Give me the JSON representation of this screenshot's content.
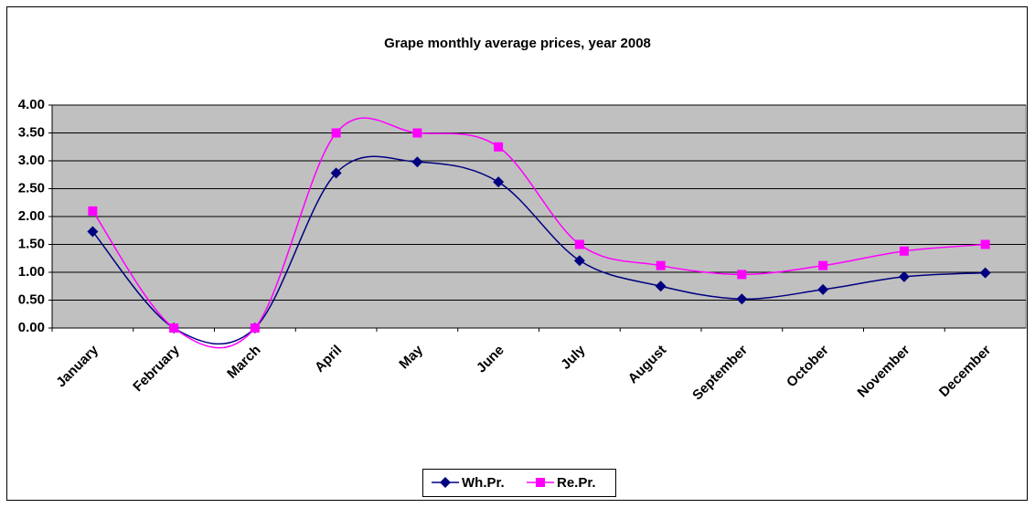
{
  "chart_data": {
    "type": "line",
    "title": "Grape monthly average prices, year 2008",
    "categories": [
      "January",
      "February",
      "March",
      "April",
      "May",
      "June",
      "July",
      "August",
      "September",
      "October",
      "November",
      "December"
    ],
    "series": [
      {
        "name": "Wh.Pr.",
        "color": "#000080",
        "marker": "diamond",
        "values": [
          1.73,
          0,
          0,
          2.78,
          2.98,
          2.62,
          1.21,
          0.75,
          0.52,
          0.69,
          0.92,
          0.99
        ]
      },
      {
        "name": "Re.Pr.",
        "color": "#ff00ff",
        "marker": "square",
        "values": [
          2.1,
          0,
          0,
          3.5,
          3.5,
          3.25,
          1.5,
          1.12,
          0.96,
          1.12,
          1.38,
          1.5
        ]
      }
    ],
    "ylim": [
      0,
      4
    ],
    "yticks": [
      {
        "value": 0,
        "label": "0.00"
      },
      {
        "value": 0.5,
        "label": "0.50"
      },
      {
        "value": 1,
        "label": "1.00"
      },
      {
        "value": 1.5,
        "label": "1.50"
      },
      {
        "value": 2,
        "label": "2.00"
      },
      {
        "value": 2.5,
        "label": "2.50"
      },
      {
        "value": 3,
        "label": "3.00"
      },
      {
        "value": 3.5,
        "label": "3.50"
      },
      {
        "value": 4,
        "label": "4.00"
      }
    ],
    "grid": true,
    "smooth": true,
    "legend": "bottom"
  }
}
